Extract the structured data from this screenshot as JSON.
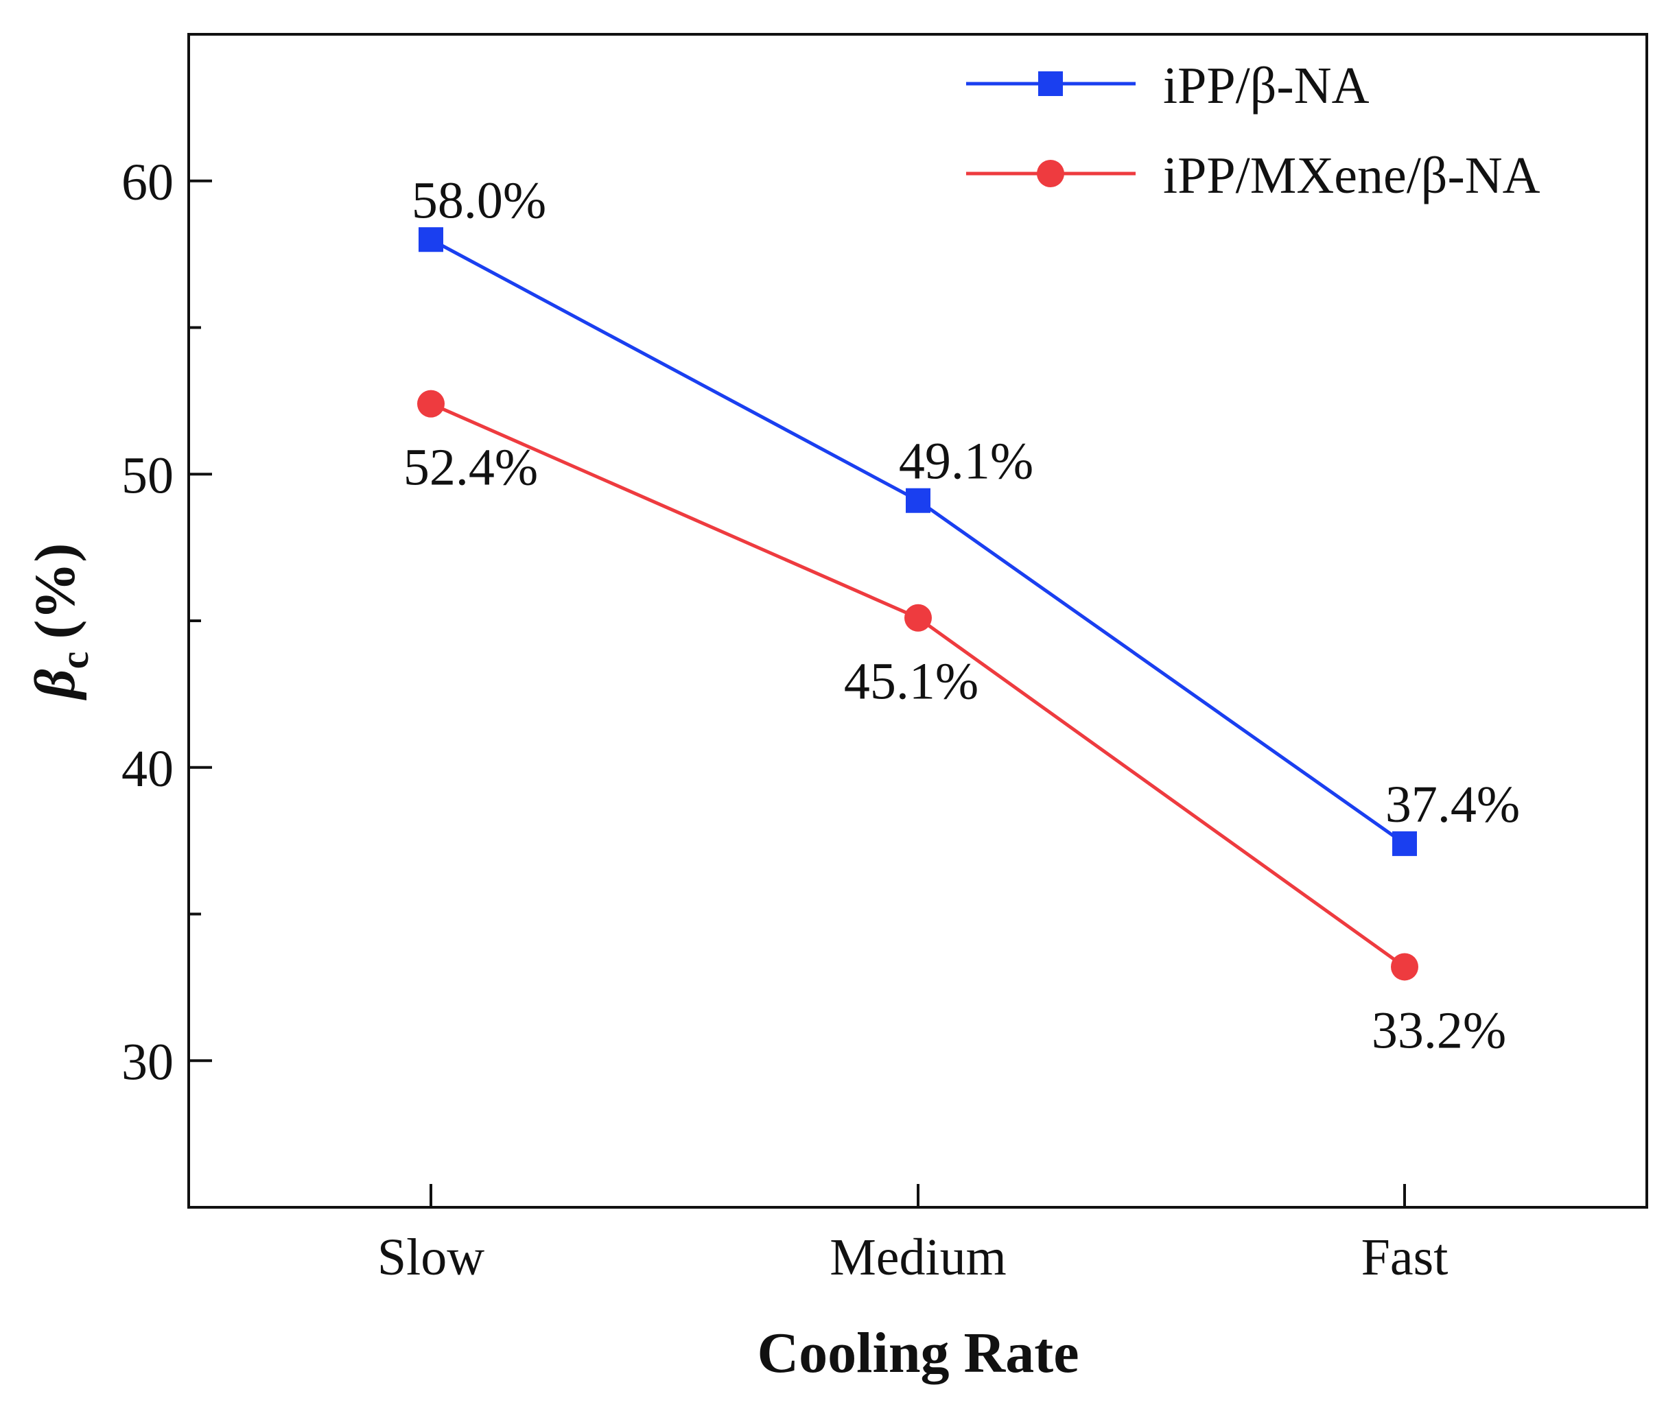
{
  "chart_data": {
    "type": "line",
    "xlabel": "Cooling Rate",
    "ylabel_main": "β",
    "ylabel_sub": "c",
    "ylabel_unit": "(%)",
    "categories": [
      "Slow",
      "Medium",
      "Fast"
    ],
    "ylim": [
      25,
      65
    ],
    "yticks_major": [
      30,
      40,
      50,
      60
    ],
    "yticks_minor": [
      35,
      45,
      55
    ],
    "series": [
      {
        "name": "iPP/β-NA",
        "color": "#1a3ff0",
        "marker": "square",
        "values": [
          58.0,
          49.1,
          37.4
        ],
        "labels": [
          "58.0%",
          "49.1%",
          "37.4%"
        ],
        "label_position": "above"
      },
      {
        "name": "iPP/MXene/β-NA",
        "color": "#ee3b3f",
        "marker": "circle",
        "values": [
          52.4,
          45.1,
          33.2
        ],
        "labels": [
          "52.4%",
          "45.1%",
          "33.2%"
        ],
        "label_position": "below"
      }
    ],
    "legend_position": "top-right",
    "grid": false
  }
}
